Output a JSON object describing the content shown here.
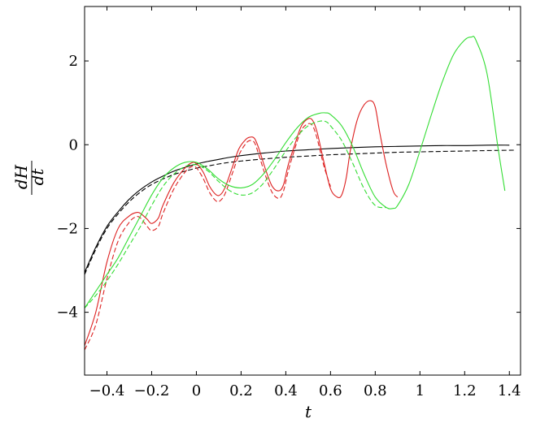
{
  "chart_data": {
    "type": "line",
    "title": "",
    "xlabel": "t",
    "ylabel": {
      "numerator": "dH",
      "denominator": "dt"
    },
    "xlim": [
      -0.5,
      1.45
    ],
    "ylim": [
      -5.5,
      3.3
    ],
    "grid": false,
    "legend": "none",
    "xticks": [
      -0.4,
      -0.2,
      0,
      0.2,
      0.4,
      0.6,
      0.8,
      1,
      1.2,
      1.4
    ],
    "xtick_labels": [
      "−0.4",
      "−0.2",
      "0",
      "0.2",
      "0.4",
      "0.6",
      "0.8",
      "1",
      "1.2",
      "1.4"
    ],
    "yticks": [
      -4,
      -2,
      0,
      2
    ],
    "ytick_labels": [
      "−4",
      "−2",
      "0",
      "2"
    ],
    "series": [
      {
        "color": "#000000",
        "dash": "solid",
        "x": [
          -0.5,
          -0.45,
          -0.4,
          -0.35,
          -0.3,
          -0.25,
          -0.2,
          -0.15,
          -0.1,
          -0.05,
          0,
          0.05,
          0.1,
          0.15,
          0.2,
          0.3,
          0.4,
          0.5,
          0.6,
          0.7,
          0.8,
          0.9,
          1.0,
          1.1,
          1.2,
          1.3,
          1.4
        ],
        "values": [
          -3.05,
          -2.45,
          -1.95,
          -1.6,
          -1.3,
          -1.07,
          -0.89,
          -0.75,
          -0.63,
          -0.54,
          -0.46,
          -0.4,
          -0.35,
          -0.3,
          -0.26,
          -0.2,
          -0.15,
          -0.12,
          -0.09,
          -0.07,
          -0.05,
          -0.04,
          -0.03,
          -0.02,
          -0.02,
          -0.01,
          -0.01
        ]
      },
      {
        "color": "#000000",
        "dash": "dashed",
        "x": [
          -0.5,
          -0.45,
          -0.4,
          -0.35,
          -0.3,
          -0.25,
          -0.2,
          -0.15,
          -0.1,
          -0.05,
          0,
          0.05,
          0.1,
          0.15,
          0.2,
          0.3,
          0.4,
          0.5,
          0.6,
          0.7,
          0.8,
          0.9,
          1.0,
          1.1,
          1.2,
          1.3,
          1.43
        ],
        "values": [
          -3.1,
          -2.5,
          -2.0,
          -1.65,
          -1.36,
          -1.13,
          -0.95,
          -0.82,
          -0.71,
          -0.63,
          -0.56,
          -0.51,
          -0.46,
          -0.42,
          -0.39,
          -0.34,
          -0.3,
          -0.27,
          -0.24,
          -0.22,
          -0.2,
          -0.18,
          -0.17,
          -0.16,
          -0.15,
          -0.14,
          -0.13
        ]
      },
      {
        "color": "#dd2020",
        "dash": "solid",
        "x": [
          -0.5,
          -0.45,
          -0.4,
          -0.35,
          -0.3,
          -0.27,
          -0.25,
          -0.22,
          -0.2,
          -0.17,
          -0.15,
          -0.1,
          -0.05,
          -0.02,
          0,
          0.03,
          0.06,
          0.09,
          0.11,
          0.13,
          0.16,
          0.19,
          0.22,
          0.24,
          0.26,
          0.28,
          0.31,
          0.34,
          0.37,
          0.39,
          0.41,
          0.44,
          0.47,
          0.5,
          0.52,
          0.54,
          0.57,
          0.6,
          0.63,
          0.65,
          0.67,
          0.69,
          0.72,
          0.75,
          0.78,
          0.8,
          0.82,
          0.85,
          0.88,
          0.9
        ],
        "values": [
          -4.8,
          -4.0,
          -2.8,
          -2.0,
          -1.7,
          -1.62,
          -1.64,
          -1.78,
          -1.88,
          -1.75,
          -1.45,
          -0.9,
          -0.55,
          -0.43,
          -0.45,
          -0.65,
          -1.0,
          -1.2,
          -1.18,
          -1.0,
          -0.55,
          -0.1,
          0.12,
          0.18,
          0.15,
          -0.1,
          -0.6,
          -1.0,
          -1.1,
          -0.95,
          -0.5,
          0.0,
          0.45,
          0.62,
          0.58,
          0.3,
          -0.4,
          -1.05,
          -1.25,
          -1.2,
          -0.8,
          -0.1,
          0.6,
          0.95,
          1.05,
          0.9,
          0.3,
          -0.5,
          -1.1,
          -1.25
        ]
      },
      {
        "color": "#dd2020",
        "dash": "dashed",
        "x": [
          -0.5,
          -0.45,
          -0.4,
          -0.35,
          -0.3,
          -0.27,
          -0.25,
          -0.22,
          -0.2,
          -0.17,
          -0.15,
          -0.1,
          -0.05,
          -0.02,
          0,
          0.03,
          0.06,
          0.09,
          0.11,
          0.13,
          0.16,
          0.19,
          0.22,
          0.24,
          0.26,
          0.28,
          0.31,
          0.34,
          0.37,
          0.39,
          0.41,
          0.44,
          0.47,
          0.5,
          0.52,
          0.54,
          0.57,
          0.6
        ],
        "values": [
          -4.9,
          -4.3,
          -3.2,
          -2.3,
          -1.85,
          -1.72,
          -1.75,
          -1.95,
          -2.05,
          -1.95,
          -1.65,
          -1.05,
          -0.65,
          -0.52,
          -0.55,
          -0.8,
          -1.15,
          -1.35,
          -1.32,
          -1.15,
          -0.7,
          -0.25,
          0.02,
          0.1,
          0.05,
          -0.25,
          -0.75,
          -1.15,
          -1.28,
          -1.1,
          -0.65,
          -0.1,
          0.35,
          0.5,
          0.45,
          0.15,
          -0.5,
          -1.0
        ]
      },
      {
        "color": "#33dd33",
        "dash": "solid",
        "x": [
          -0.5,
          -0.45,
          -0.4,
          -0.35,
          -0.3,
          -0.25,
          -0.2,
          -0.15,
          -0.1,
          -0.05,
          0,
          0.05,
          0.1,
          0.15,
          0.2,
          0.25,
          0.3,
          0.35,
          0.4,
          0.45,
          0.5,
          0.55,
          0.58,
          0.6,
          0.65,
          0.7,
          0.75,
          0.8,
          0.85,
          0.88,
          0.9,
          0.95,
          1.0,
          1.05,
          1.1,
          1.15,
          1.2,
          1.23,
          1.25,
          1.3,
          1.35,
          1.38
        ],
        "values": [
          -3.9,
          -3.5,
          -3.1,
          -2.7,
          -2.2,
          -1.7,
          -1.2,
          -0.8,
          -0.55,
          -0.42,
          -0.42,
          -0.58,
          -0.82,
          -0.98,
          -1.03,
          -0.95,
          -0.7,
          -0.35,
          0.05,
          0.4,
          0.65,
          0.75,
          0.76,
          0.72,
          0.45,
          -0.05,
          -0.7,
          -1.25,
          -1.5,
          -1.52,
          -1.45,
          -0.95,
          -0.15,
          0.7,
          1.5,
          2.15,
          2.5,
          2.57,
          2.5,
          1.7,
          -0.1,
          -1.1
        ]
      },
      {
        "color": "#33dd33",
        "dash": "dashed",
        "x": [
          -0.5,
          -0.45,
          -0.4,
          -0.35,
          -0.3,
          -0.25,
          -0.2,
          -0.15,
          -0.1,
          -0.05,
          0,
          0.05,
          0.1,
          0.15,
          0.2,
          0.25,
          0.3,
          0.35,
          0.4,
          0.45,
          0.5,
          0.55,
          0.58,
          0.6,
          0.65,
          0.7,
          0.75,
          0.8,
          0.85
        ],
        "values": [
          -3.9,
          -3.6,
          -3.25,
          -2.85,
          -2.4,
          -1.95,
          -1.45,
          -1.0,
          -0.7,
          -0.52,
          -0.48,
          -0.62,
          -0.88,
          -1.1,
          -1.2,
          -1.15,
          -0.92,
          -0.55,
          -0.15,
          0.2,
          0.45,
          0.56,
          0.55,
          0.45,
          0.1,
          -0.45,
          -1.05,
          -1.45,
          -1.5
        ]
      }
    ]
  }
}
